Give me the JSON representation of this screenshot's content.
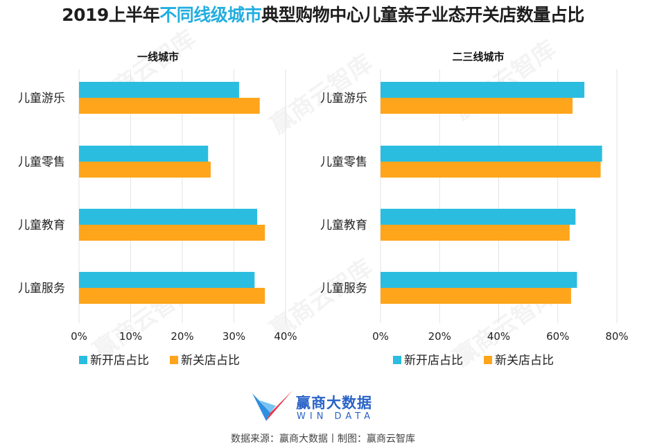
{
  "title": {
    "before": "2019上半年",
    "highlight": "不同线级城市",
    "after": "典型购物中心儿童亲子业态开关店数量占比"
  },
  "colors": {
    "open": "#2bbde0",
    "close": "#ffa51b",
    "title_highlight": "#22aee0",
    "brand": "#2a63c8"
  },
  "chart_data": [
    {
      "type": "bar",
      "orientation": "horizontal",
      "title": "一线城市",
      "categories": [
        "儿童游乐",
        "儿童零售",
        "儿童教育",
        "儿童服务"
      ],
      "series": [
        {
          "name": "新开店占比",
          "values": [
            31,
            25,
            34.5,
            34
          ]
        },
        {
          "name": "新关店占比",
          "values": [
            35,
            25.5,
            36,
            36
          ]
        }
      ],
      "xlim": [
        0,
        40
      ],
      "ticks": [
        "0%",
        "10%",
        "20%",
        "30%",
        "40%"
      ],
      "grid": true,
      "legend": "bottom"
    },
    {
      "type": "bar",
      "orientation": "horizontal",
      "title": "二三线城市",
      "categories": [
        "儿童游乐",
        "儿童零售",
        "儿童教育",
        "儿童服务"
      ],
      "series": [
        {
          "name": "新开店占比",
          "values": [
            69,
            75,
            66,
            66.5
          ]
        },
        {
          "name": "新关店占比",
          "values": [
            65,
            74.5,
            64,
            64.5
          ]
        }
      ],
      "xlim": [
        0,
        80
      ],
      "ticks": [
        "0%",
        "20%",
        "40%",
        "60%",
        "80%"
      ],
      "grid": true,
      "legend": "bottom"
    }
  ],
  "watermark": "赢商云智库",
  "logo": {
    "name": "赢商大数据",
    "sub": "WIN DATA"
  },
  "source": "数据来源：赢商大数据丨制图：赢商云智库"
}
